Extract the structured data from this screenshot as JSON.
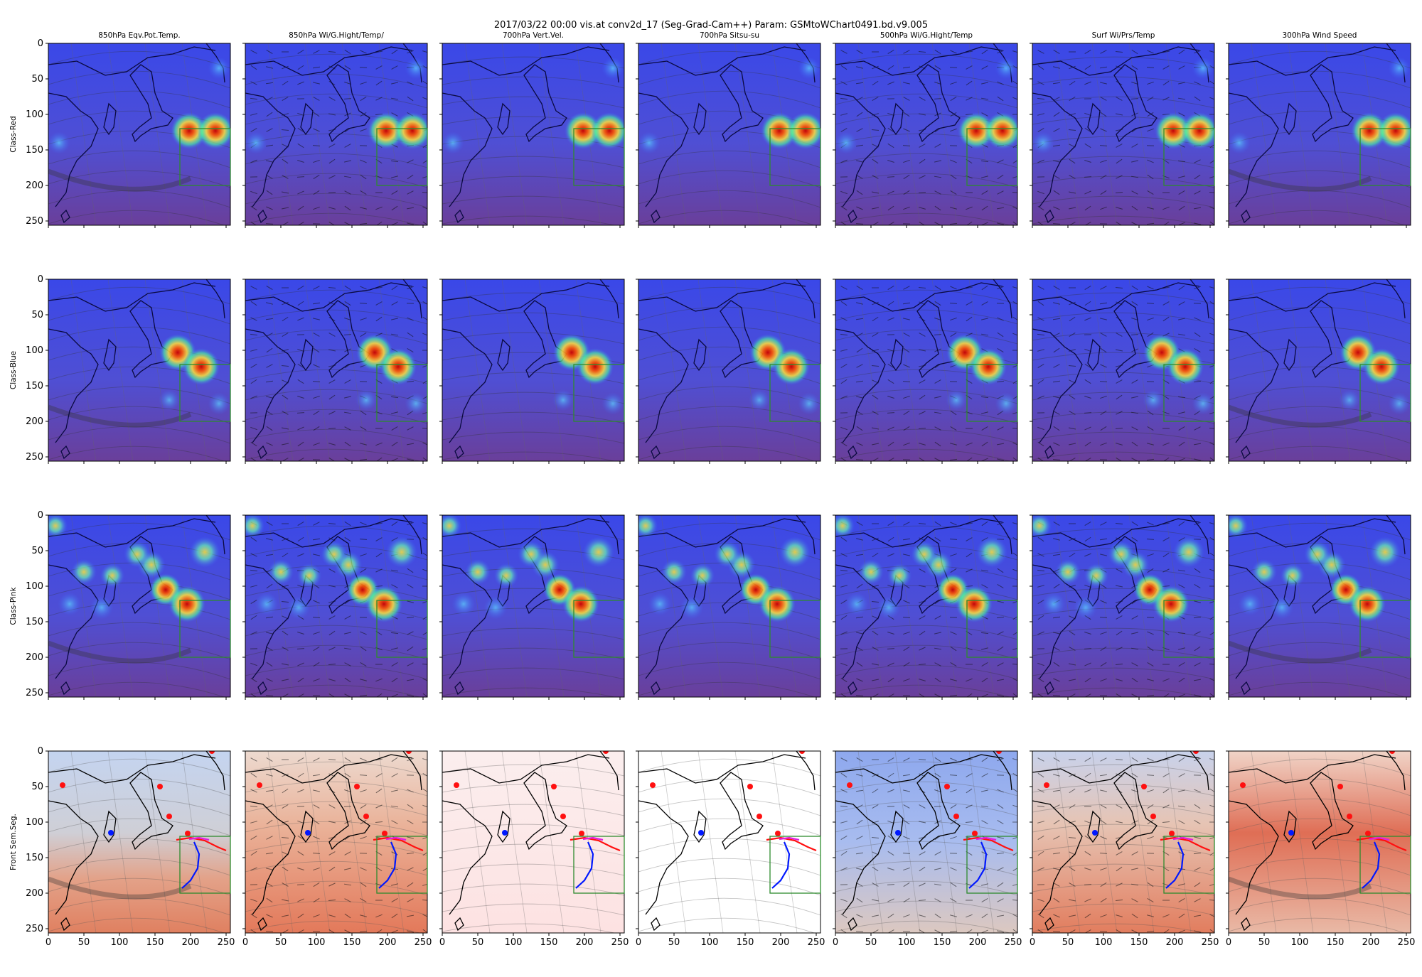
{
  "chart_data": {
    "type": "heatmap",
    "title": "2017/03/22 00:00 vis.at conv2d_17 (Seg-Grad-Cam++) Param: GSMtoWChart0491.bd.v9.005",
    "columns": [
      "850hPa Eqv.Pot.Temp.",
      "850hPa Wi/G.Hight/Temp/",
      "700hPa Vert.Vel.",
      "700hPa Sitsu-su",
      "500hPa Wi/G.Hight/Temp",
      "Surf Wi/Prs/Temp",
      "300hPa Wind Speed"
    ],
    "rows": [
      "Class-Red",
      "Class-Blue",
      "Class-Pink",
      "Front Sem.Seg."
    ],
    "xlim": [
      0,
      256
    ],
    "ylim": [
      256,
      0
    ],
    "x_ticks": [
      0,
      50,
      100,
      150,
      200,
      250
    ],
    "y_ticks": [
      0,
      50,
      100,
      150,
      200,
      250
    ],
    "highlight_box": {
      "x": [
        185,
        256
      ],
      "y": [
        120,
        200
      ],
      "color": "#2e8b2e"
    },
    "activation_hotspots": {
      "Class-Red": [
        {
          "x": 198,
          "y": 123,
          "value": 1.0
        },
        {
          "x": 235,
          "y": 123,
          "value": 1.0
        },
        {
          "x": 15,
          "y": 140,
          "value": 0.35
        },
        {
          "x": 240,
          "y": 35,
          "value": 0.35
        }
      ],
      "Class-Blue": [
        {
          "x": 182,
          "y": 103,
          "value": 1.0
        },
        {
          "x": 215,
          "y": 123,
          "value": 1.0
        },
        {
          "x": 240,
          "y": 175,
          "value": 0.35
        },
        {
          "x": 170,
          "y": 170,
          "value": 0.3
        }
      ],
      "Class-Pink": [
        {
          "x": 145,
          "y": 70,
          "value": 0.6
        },
        {
          "x": 165,
          "y": 105,
          "value": 0.8
        },
        {
          "x": 195,
          "y": 125,
          "value": 1.0
        },
        {
          "x": 220,
          "y": 52,
          "value": 0.75
        },
        {
          "x": 125,
          "y": 55,
          "value": 0.55
        },
        {
          "x": 50,
          "y": 80,
          "value": 0.5
        },
        {
          "x": 90,
          "y": 85,
          "value": 0.45
        },
        {
          "x": 10,
          "y": 15,
          "value": 0.45
        },
        {
          "x": 30,
          "y": 125,
          "value": 0.4
        },
        {
          "x": 75,
          "y": 130,
          "value": 0.4
        }
      ]
    },
    "front_segments": {
      "warm_front_red": [
        [
          180,
          125
        ],
        [
          200,
          122
        ],
        [
          220,
          126
        ],
        [
          238,
          135
        ],
        [
          250,
          140
        ]
      ],
      "cold_front_blue": [
        [
          205,
          128
        ],
        [
          212,
          145
        ],
        [
          210,
          165
        ],
        [
          200,
          182
        ],
        [
          188,
          193
        ]
      ],
      "occluded_magenta": [
        [
          198,
          124
        ],
        [
          212,
          122
        ],
        [
          226,
          125
        ]
      ],
      "red_markers": [
        [
          20,
          48
        ],
        [
          157,
          50
        ],
        [
          170,
          92
        ],
        [
          196,
          116
        ],
        [
          230,
          0
        ]
      ],
      "blue_markers": [
        [
          88,
          115
        ]
      ]
    }
  }
}
